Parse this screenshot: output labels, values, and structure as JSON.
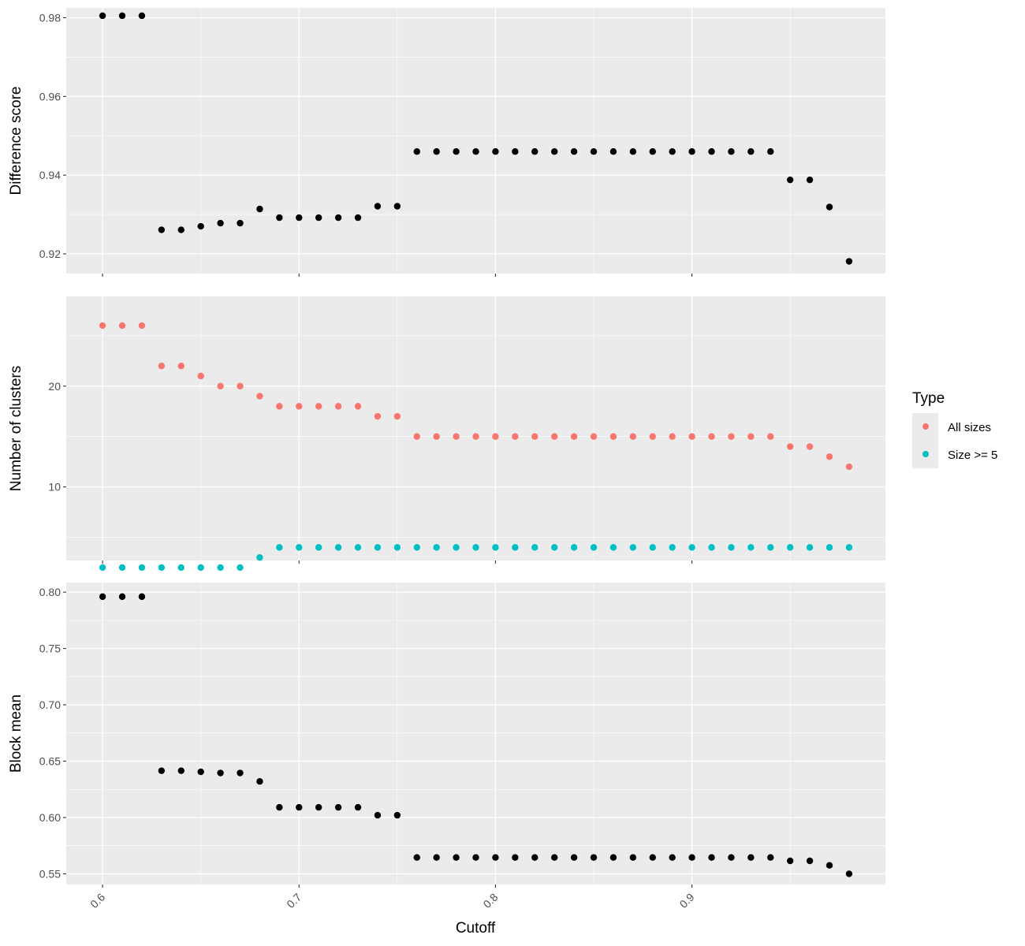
{
  "chart_data": [
    {
      "type": "scatter",
      "ylabel": "Difference score",
      "xlabel": "",
      "ylim": [
        0.915,
        0.9825
      ],
      "y_ticks": [
        0.92,
        0.94,
        0.96,
        0.98
      ],
      "y_tick_labels": [
        "0.92",
        "0.94",
        "0.96",
        "0.98"
      ],
      "grid": true,
      "series": [
        {
          "color": "#000000",
          "x": [
            0.6,
            0.61,
            0.62,
            0.63,
            0.64,
            0.65,
            0.66,
            0.67,
            0.68,
            0.69,
            0.7,
            0.71,
            0.72,
            0.73,
            0.74,
            0.75,
            0.76,
            0.77,
            0.78,
            0.79,
            0.8,
            0.81,
            0.82,
            0.83,
            0.84,
            0.85,
            0.86,
            0.87,
            0.88,
            0.89,
            0.9,
            0.91,
            0.92,
            0.93,
            0.94,
            0.95,
            0.96,
            0.97,
            0.98
          ],
          "y": [
            0.9805,
            0.9805,
            0.9805,
            0.9261,
            0.9261,
            0.927,
            0.9278,
            0.9278,
            0.9314,
            0.9292,
            0.9292,
            0.9292,
            0.9292,
            0.9292,
            0.9321,
            0.9321,
            0.946,
            0.946,
            0.946,
            0.946,
            0.946,
            0.946,
            0.946,
            0.946,
            0.946,
            0.946,
            0.946,
            0.946,
            0.946,
            0.946,
            0.946,
            0.946,
            0.946,
            0.946,
            0.946,
            0.9388,
            0.9388,
            0.9319,
            0.9181
          ]
        }
      ]
    },
    {
      "type": "scatter",
      "ylabel": "Number of clusters",
      "xlabel": "",
      "ylim": [
        2.7,
        28.9
      ],
      "y_ticks": [
        10,
        20
      ],
      "y_tick_labels": [
        "10",
        "20"
      ],
      "grid": true,
      "legend": {
        "title": "Type",
        "position": "right"
      },
      "series": [
        {
          "name": "All sizes",
          "color": "#F8766D",
          "x": [
            0.6,
            0.61,
            0.62,
            0.63,
            0.64,
            0.65,
            0.66,
            0.67,
            0.68,
            0.69,
            0.7,
            0.71,
            0.72,
            0.73,
            0.74,
            0.75,
            0.76,
            0.77,
            0.78,
            0.79,
            0.8,
            0.81,
            0.82,
            0.83,
            0.84,
            0.85,
            0.86,
            0.87,
            0.88,
            0.89,
            0.9,
            0.91,
            0.92,
            0.93,
            0.94,
            0.95,
            0.96,
            0.97,
            0.98
          ],
          "y": [
            26,
            26,
            26,
            22,
            22,
            21,
            20,
            20,
            19,
            18,
            18,
            18,
            18,
            18,
            17,
            17,
            15,
            15,
            15,
            15,
            15,
            15,
            15,
            15,
            15,
            15,
            15,
            15,
            15,
            15,
            15,
            15,
            15,
            15,
            15,
            14,
            14,
            13,
            12
          ]
        },
        {
          "name": "Size >= 5",
          "color": "#00BFC4",
          "x": [
            0.6,
            0.61,
            0.62,
            0.63,
            0.64,
            0.65,
            0.66,
            0.67,
            0.68,
            0.69,
            0.7,
            0.71,
            0.72,
            0.73,
            0.74,
            0.75,
            0.76,
            0.77,
            0.78,
            0.79,
            0.8,
            0.81,
            0.82,
            0.83,
            0.84,
            0.85,
            0.86,
            0.87,
            0.88,
            0.89,
            0.9,
            0.91,
            0.92,
            0.93,
            0.94,
            0.95,
            0.96,
            0.97,
            0.98
          ],
          "y": [
            2,
            2,
            2,
            2,
            2,
            2,
            2,
            2,
            3,
            4,
            4,
            4,
            4,
            4,
            4,
            4,
            4,
            4,
            4,
            4,
            4,
            4,
            4,
            4,
            4,
            4,
            4,
            4,
            4,
            4,
            4,
            4,
            4,
            4,
            4,
            4,
            4,
            4,
            4
          ]
        }
      ]
    },
    {
      "type": "scatter",
      "ylabel": "Block mean",
      "xlabel": "Cutoff",
      "ylim": [
        0.5405,
        0.8085
      ],
      "y_ticks": [
        0.55,
        0.6,
        0.65,
        0.7,
        0.75,
        0.8
      ],
      "y_tick_labels": [
        "0.55",
        "0.60",
        "0.65",
        "0.70",
        "0.75",
        "0.80"
      ],
      "grid": true,
      "series": [
        {
          "color": "#000000",
          "x": [
            0.6,
            0.61,
            0.62,
            0.63,
            0.64,
            0.65,
            0.66,
            0.67,
            0.68,
            0.69,
            0.7,
            0.71,
            0.72,
            0.73,
            0.74,
            0.75,
            0.76,
            0.77,
            0.78,
            0.79,
            0.8,
            0.81,
            0.82,
            0.83,
            0.84,
            0.85,
            0.86,
            0.87,
            0.88,
            0.89,
            0.9,
            0.91,
            0.92,
            0.93,
            0.94,
            0.95,
            0.96,
            0.97,
            0.98
          ],
          "y": [
            0.796,
            0.796,
            0.796,
            0.6415,
            0.6415,
            0.6405,
            0.6395,
            0.6395,
            0.632,
            0.609,
            0.609,
            0.609,
            0.609,
            0.609,
            0.602,
            0.602,
            0.5645,
            0.5645,
            0.5645,
            0.5645,
            0.5645,
            0.5645,
            0.5645,
            0.5645,
            0.5645,
            0.5645,
            0.5645,
            0.5645,
            0.5645,
            0.5645,
            0.5645,
            0.5645,
            0.5645,
            0.5645,
            0.5645,
            0.5615,
            0.5615,
            0.5575,
            0.55
          ]
        }
      ]
    }
  ],
  "x_axis": {
    "title": "Cutoff",
    "xlim": [
      0.5815,
      0.9985
    ],
    "ticks": [
      0.6,
      0.7,
      0.8,
      0.9
    ],
    "tick_labels": [
      "0.6",
      "0.7",
      "0.8",
      "0.9"
    ],
    "minor_ticks": [
      0.65,
      0.75,
      0.85,
      0.95
    ]
  },
  "legend": {
    "title": "Type",
    "items": [
      {
        "label": "All sizes",
        "color": "#F8766D"
      },
      {
        "label": "Size >= 5",
        "color": "#00BFC4"
      }
    ]
  },
  "colors": {
    "panel_background": "#EBEBEB",
    "grid": "#FFFFFF",
    "tick_text": "#4D4D4D"
  }
}
